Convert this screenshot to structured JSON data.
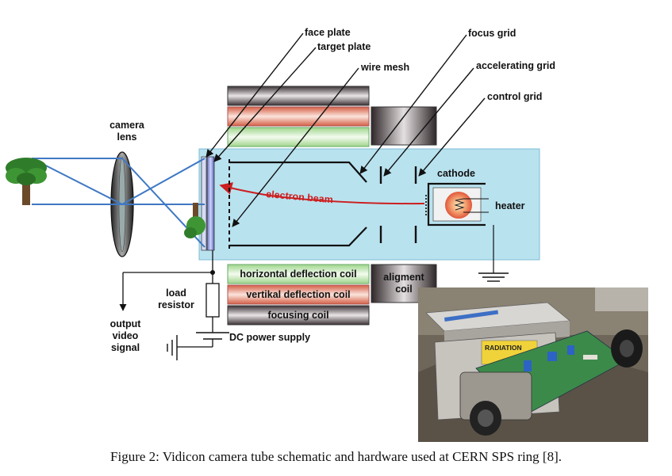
{
  "labels": {
    "face_plate": "face plate",
    "target_plate": "target plate",
    "wire_mesh": "wire mesh",
    "focus_grid": "focus grid",
    "accelerating_grid": "accelerating grid",
    "control_grid": "control grid",
    "camera_lens_1": "camera",
    "camera_lens_2": "lens",
    "cathode": "cathode",
    "heater": "heater",
    "electron_beam": "electron beam",
    "load_resistor_1": "load",
    "load_resistor_2": "resistor",
    "output_1": "output",
    "output_2": "video",
    "output_3": "signal",
    "dc_power_supply": "DC power supply"
  },
  "coils": {
    "horizontal": "horizontal deflection  coil",
    "vertical": "vertikal deflection  coil",
    "focusing": "focusing coil",
    "alignment_1": "aligment",
    "alignment_2": "coil"
  },
  "photo": {
    "sticker_text": "RADIATION"
  },
  "caption": "Figure 2: Vidicon camera tube schematic and hardware used at CERN SPS ring [8].",
  "colors": {
    "tube_body": "#b9e2ef",
    "electron_beam": "#cc1f1f",
    "coil_green": "#ccebc0",
    "coil_salmon": "#e8907a",
    "coil_dark": "#5e5458",
    "lens_ray": "#3f78c4"
  }
}
